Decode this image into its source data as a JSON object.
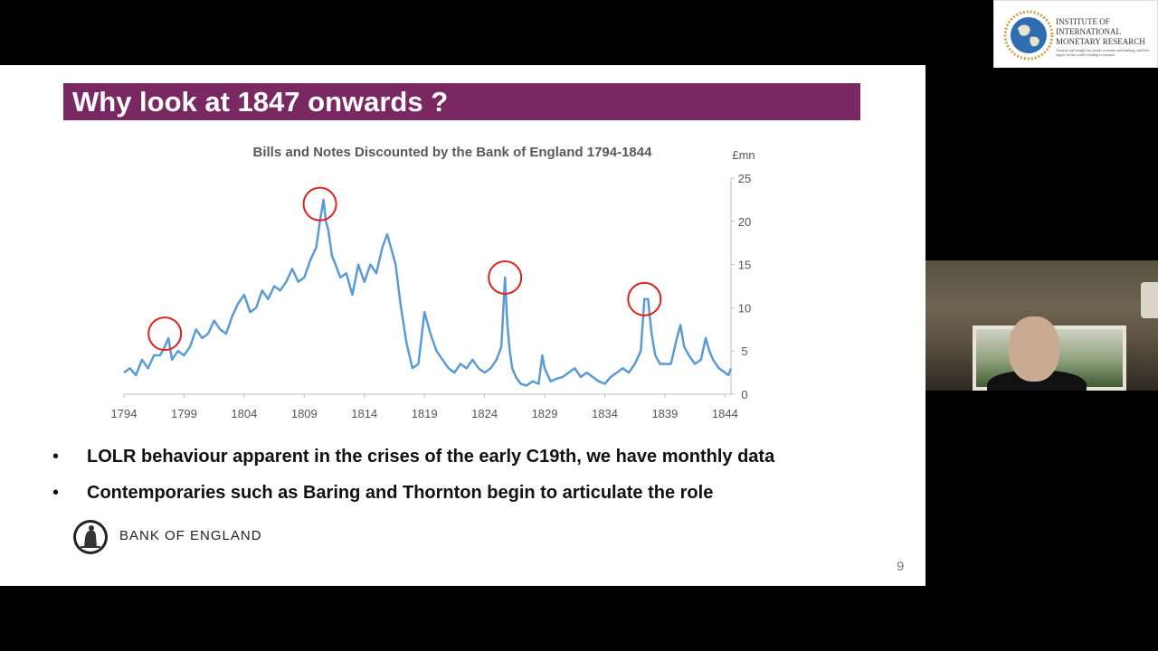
{
  "slide": {
    "title": "Why look at 1847 onwards ?",
    "bullets": [
      "LOLR behaviour apparent in the crises of the early C19th, we have monthly data",
      "Contemporaries such as Baring and Thornton begin to articulate the role"
    ],
    "bullet_symbol": "•",
    "footer_logo_text": "BANK OF ENGLAND",
    "page_number": "9",
    "title_bar_color": "#7a2862"
  },
  "chart_data": {
    "type": "line",
    "title": "Bills and Notes Discounted by the Bank of England 1794-1844",
    "unit_label": "£mn",
    "xlabel": "",
    "ylabel": "",
    "y_axis_side": "right",
    "xlim": [
      1794,
      1844.5
    ],
    "ylim": [
      0,
      25
    ],
    "x_ticks": [
      "1794",
      "1799",
      "1804",
      "1809",
      "1814",
      "1819",
      "1824",
      "1829",
      "1834",
      "1839",
      "1844"
    ],
    "y_ticks": [
      "0",
      "5",
      "10",
      "15",
      "20",
      "25"
    ],
    "grid": false,
    "line_color": "#5b9bd5",
    "annotation_color": "#e0201b",
    "series": [
      {
        "x": [
          1794.0,
          1794.5,
          1795.0,
          1795.5,
          1796.0,
          1796.5,
          1797.0,
          1797.4,
          1797.7,
          1798.0,
          1798.5,
          1799.0,
          1799.5,
          1800.0,
          1800.5,
          1801.0,
          1801.5,
          1802.0,
          1802.5,
          1803.0,
          1803.5,
          1804.0,
          1804.5,
          1805.0,
          1805.5,
          1806.0,
          1806.5,
          1807.0,
          1807.5,
          1808.0,
          1808.5,
          1809.0,
          1809.5,
          1810.0,
          1810.3,
          1810.6,
          1810.8,
          1811.0,
          1811.3,
          1811.6,
          1812.0,
          1812.5,
          1813.0,
          1813.5,
          1814.0,
          1814.5,
          1815.0,
          1815.5,
          1815.9,
          1816.2,
          1816.6,
          1817.0,
          1817.5,
          1818.0,
          1818.5,
          1819.0,
          1819.5,
          1820.0,
          1820.5,
          1821.0,
          1821.5,
          1822.0,
          1822.5,
          1823.0,
          1823.5,
          1824.0,
          1824.5,
          1825.0,
          1825.4,
          1825.7,
          1825.9,
          1826.1,
          1826.3,
          1826.6,
          1827.0,
          1827.5,
          1828.0,
          1828.5,
          1828.8,
          1829.0,
          1829.5,
          1830.0,
          1830.5,
          1831.0,
          1831.5,
          1832.0,
          1832.5,
          1833.0,
          1833.5,
          1834.0,
          1834.5,
          1835.0,
          1835.5,
          1836.0,
          1836.5,
          1837.0,
          1837.3,
          1837.6,
          1837.9,
          1838.2,
          1838.6,
          1839.0,
          1839.5,
          1840.0,
          1840.3,
          1840.6,
          1841.0,
          1841.5,
          1842.0,
          1842.4,
          1842.7,
          1843.0,
          1843.5,
          1844.0,
          1844.3,
          1844.5
        ],
        "y": [
          2.5,
          3.0,
          2.2,
          4.0,
          3.0,
          4.5,
          4.5,
          5.5,
          6.5,
          4.0,
          5.0,
          4.5,
          5.5,
          7.5,
          6.5,
          7.0,
          8.5,
          7.5,
          7.0,
          9.0,
          10.5,
          11.5,
          9.5,
          10.0,
          12.0,
          11.0,
          12.5,
          12.0,
          13.0,
          14.5,
          13.0,
          13.5,
          15.5,
          17.0,
          20.0,
          22.5,
          20.0,
          19.0,
          16.0,
          15.0,
          13.5,
          14.0,
          11.5,
          15.0,
          13.0,
          15.0,
          14.0,
          17.0,
          18.5,
          17.0,
          15.0,
          10.5,
          6.0,
          3.0,
          3.5,
          9.5,
          7.0,
          5.0,
          4.0,
          3.0,
          2.5,
          3.5,
          3.0,
          4.0,
          3.0,
          2.5,
          3.0,
          4.0,
          5.5,
          13.5,
          8.0,
          5.0,
          3.0,
          2.0,
          1.2,
          1.0,
          1.5,
          1.2,
          4.5,
          3.0,
          1.5,
          1.8,
          2.0,
          2.5,
          3.0,
          2.0,
          2.5,
          2.0,
          1.5,
          1.2,
          2.0,
          2.5,
          3.0,
          2.5,
          3.5,
          5.0,
          11.0,
          11.0,
          7.0,
          4.5,
          3.5,
          3.5,
          3.5,
          6.5,
          8.0,
          5.5,
          4.5,
          3.5,
          4.0,
          6.5,
          5.0,
          4.0,
          3.0,
          2.5,
          2.2,
          3.0
        ]
      }
    ],
    "annotations": [
      {
        "type": "circle",
        "x": 1797.4,
        "y": 7.0
      },
      {
        "type": "circle",
        "x": 1810.3,
        "y": 22.0
      },
      {
        "type": "circle",
        "x": 1825.7,
        "y": 13.5
      },
      {
        "type": "circle",
        "x": 1837.3,
        "y": 11.0
      }
    ]
  },
  "overlay": {
    "logo_title": "INSTITUTE OF\nINTERNATIONAL\nMONETARY RESEARCH",
    "logo_tagline": "Analysis and insight into trends in money and banking, and their impact on the world's leading economies"
  }
}
